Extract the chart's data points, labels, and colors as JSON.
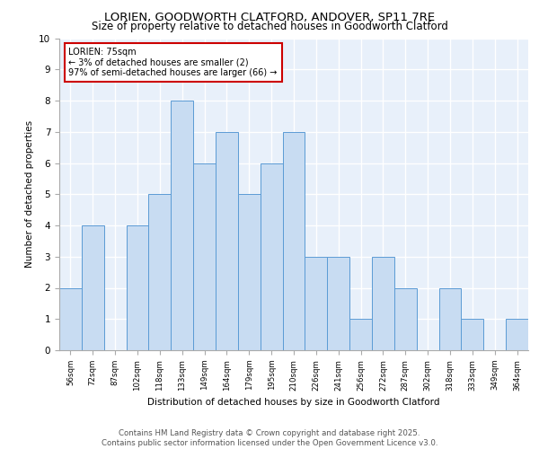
{
  "title1": "LORIEN, GOODWORTH CLATFORD, ANDOVER, SP11 7RE",
  "title2": "Size of property relative to detached houses in Goodworth Clatford",
  "xlabel": "Distribution of detached houses by size in Goodworth Clatford",
  "ylabel": "Number of detached properties",
  "footer1": "Contains HM Land Registry data © Crown copyright and database right 2025.",
  "footer2": "Contains public sector information licensed under the Open Government Licence v3.0.",
  "annotation_title": "LORIEN: 75sqm",
  "annotation_line1": "← 3% of detached houses are smaller (2)",
  "annotation_line2": "97% of semi-detached houses are larger (66) →",
  "bar_labels": [
    "56sqm",
    "72sqm",
    "87sqm",
    "102sqm",
    "118sqm",
    "133sqm",
    "149sqm",
    "164sqm",
    "179sqm",
    "195sqm",
    "210sqm",
    "226sqm",
    "241sqm",
    "256sqm",
    "272sqm",
    "287sqm",
    "302sqm",
    "318sqm",
    "333sqm",
    "349sqm",
    "364sqm"
  ],
  "bar_values": [
    2,
    4,
    0,
    4,
    5,
    8,
    6,
    7,
    5,
    6,
    7,
    3,
    3,
    1,
    3,
    2,
    0,
    2,
    1,
    0,
    1
  ],
  "bar_color": "#c8dcf2",
  "bar_edge_color": "#5b9bd5",
  "bg_color": "#e8f0fa",
  "grid_color": "#ffffff",
  "annotation_box_color": "#ffffff",
  "annotation_box_edge": "#cc0000",
  "ylim": [
    0,
    10
  ],
  "yticks": [
    0,
    1,
    2,
    3,
    4,
    5,
    6,
    7,
    8,
    9,
    10
  ],
  "title1_fontsize": 9.5,
  "title2_fontsize": 8.5,
  "axis_fontsize": 7.5,
  "tick_fontsize": 7.5,
  "footer_fontsize": 6.2
}
